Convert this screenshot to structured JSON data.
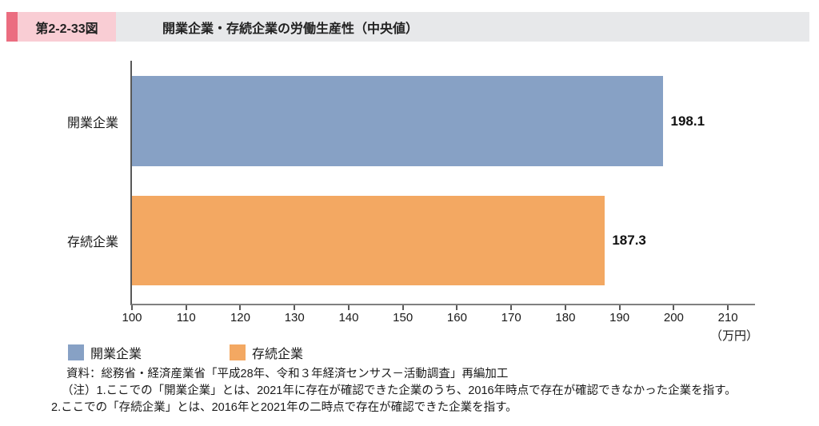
{
  "header": {
    "figure_number": "第2-2-33図",
    "title": "開業企業・存続企業の労働生産性（中央値）"
  },
  "chart_data": {
    "type": "bar",
    "orientation": "horizontal",
    "title": "開業企業・存続企業の労働生産性（中央値）",
    "categories": [
      "開業企業",
      "存続企業"
    ],
    "values": [
      198.1,
      187.3
    ],
    "value_labels": [
      "198.1",
      "187.3"
    ],
    "unit": "（万円）",
    "xlim": [
      100,
      215
    ],
    "xticks": [
      100,
      110,
      120,
      130,
      140,
      150,
      160,
      170,
      180,
      190,
      200,
      210
    ],
    "bar_colors": [
      "#87A1C5",
      "#F3A862"
    ],
    "axis_color": "#595959",
    "grid": false,
    "legend_position": "bottom-left",
    "legend": [
      {
        "label": "開業企業",
        "color": "#87A1C5"
      },
      {
        "label": "存続企業",
        "color": "#F3A862"
      }
    ]
  },
  "footer": {
    "source": "資料：総務省・経済産業省「平成28年、令和３年経済センサス－活動調査」再編加工",
    "note1": "（注）1.ここでの「開業企業」とは、2021年に存在が確認できた企業のうち、2016年時点で存在が確認できなかった企業を指す。",
    "note2": "2.ここでの「存続企業」とは、2016年と2021年の二時点で存在が確認できた企業を指す。"
  },
  "colors": {
    "accent_pink": "#EB6D80",
    "light_pink": "#F9CDD4",
    "header_gray": "#E7E8EA"
  }
}
